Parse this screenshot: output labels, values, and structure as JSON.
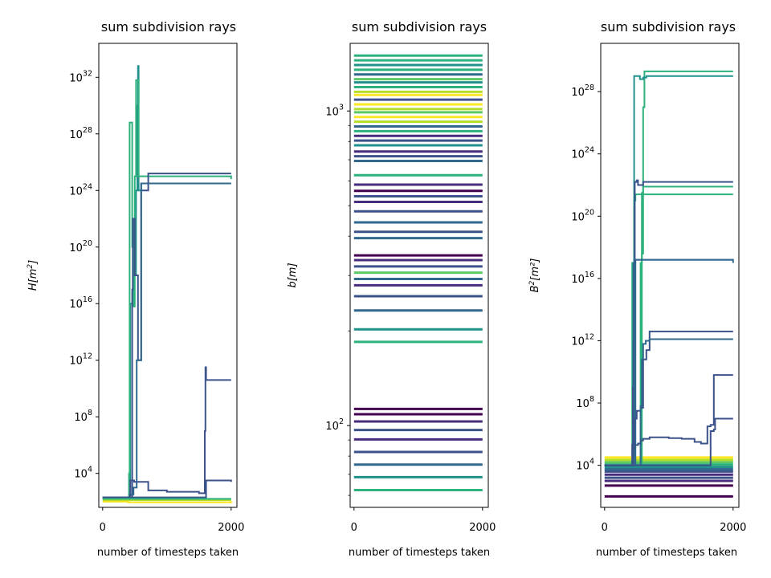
{
  "chart_data": [
    {
      "type": "line",
      "title": "sum subdivision rays",
      "xlabel": "number of timesteps taken",
      "ylabel": "H[m²]",
      "ylabel_base": "H[m",
      "ylabel_sup": "2",
      "ylabel_tail": "]",
      "yscale": "log",
      "xlim": [
        -60,
        2090
      ],
      "ylim_log10": [
        1.6,
        34.4
      ],
      "xticks": [
        {
          "v": 0,
          "label": "0"
        },
        {
          "v": 2000,
          "label": "2000"
        }
      ],
      "yticks": [
        {
          "exp": 4,
          "base": "10",
          "sup": "4"
        },
        {
          "exp": 8,
          "base": "10",
          "sup": "8"
        },
        {
          "exp": 12,
          "base": "10",
          "sup": "12"
        },
        {
          "exp": 16,
          "base": "10",
          "sup": "16"
        },
        {
          "exp": 20,
          "base": "10",
          "sup": "20"
        },
        {
          "exp": 24,
          "base": "10",
          "sup": "24"
        },
        {
          "exp": 28,
          "base": "10",
          "sup": "28"
        },
        {
          "exp": 32,
          "base": "10",
          "sup": "32"
        }
      ],
      "series": [
        {
          "color": "#21918c",
          "x": [
            0,
            420,
            430,
            470,
            480,
            510,
            520,
            540,
            550,
            560,
            600,
            2000
          ],
          "y_log10": [
            2.3,
            2.3,
            16,
            20,
            22,
            18,
            24,
            30,
            32.8,
            24,
            24.5,
            24.5
          ]
        },
        {
          "color": "#2db27d",
          "x": [
            0,
            400,
            410,
            420,
            430,
            460,
            480,
            500,
            520,
            560,
            2000
          ],
          "y_log10": [
            2.3,
            2.3,
            4,
            28.8,
            28.8,
            20,
            15.8,
            25,
            31.8,
            25,
            24.8
          ]
        },
        {
          "color": "#3b528b",
          "x": [
            0,
            400,
            460,
            470,
            500,
            550,
            600,
            700,
            710,
            750,
            2000
          ],
          "y_log10": [
            2.3,
            2.3,
            17,
            22,
            18,
            12,
            24,
            24,
            25.2,
            25.2,
            25.2
          ]
        },
        {
          "color": "#31688e",
          "x": [
            0,
            380,
            420,
            480,
            530,
            560,
            600,
            700,
            720,
            2000
          ],
          "y_log10": [
            2.3,
            2.3,
            2.5,
            3,
            12,
            12,
            24.5,
            24.5,
            24.5,
            24.5
          ]
        },
        {
          "color": "#3b528b",
          "x": [
            0,
            420,
            430,
            490,
            540,
            700,
            710,
            1000,
            1500,
            1580,
            1590,
            1600,
            1610,
            1650,
            2000
          ],
          "y_log10": [
            2.3,
            2.3,
            3.5,
            3.4,
            3.4,
            3.4,
            2.8,
            2.7,
            2.6,
            2.6,
            7,
            11.5,
            10.6,
            10.6,
            10.6
          ]
        },
        {
          "color": "#3b528b",
          "x": [
            0,
            1600,
            1610,
            1800,
            2000
          ],
          "y_log10": [
            2.3,
            2.3,
            3.5,
            3.5,
            3.4
          ]
        },
        {
          "color": "#21918c",
          "x": [
            0,
            2000
          ],
          "y_log10": [
            2.15,
            2.15
          ]
        },
        {
          "color": "#fde725",
          "x": [
            0,
            400,
            2000
          ],
          "y_log10": [
            2.0,
            1.95,
            2.05
          ]
        },
        {
          "color": "#b5de2b",
          "x": [
            0,
            2000
          ],
          "y_log10": [
            2.1,
            2.1
          ]
        },
        {
          "color": "#2db27d",
          "x": [
            0,
            2000
          ],
          "y_log10": [
            2.2,
            2.2
          ]
        }
      ]
    },
    {
      "type": "line",
      "title": "sum subdivision rays",
      "xlabel": "number of timesteps taken",
      "ylabel": "b[m]",
      "ylabel_base": "b[m]",
      "ylabel_sup": "",
      "ylabel_tail": "",
      "yscale": "log",
      "xlim": [
        -60,
        2090
      ],
      "ylim_log10": [
        1.74,
        3.215
      ],
      "xticks": [
        {
          "v": 0,
          "label": "0"
        },
        {
          "v": 2000,
          "label": "2000"
        }
      ],
      "yticks": [
        {
          "exp": 2,
          "base": "10",
          "sup": "2"
        },
        {
          "exp": 3,
          "base": "10",
          "sup": "3"
        }
      ],
      "minor_ticks_log10": [
        1.778,
        1.845,
        1.903,
        1.954,
        2.301,
        2.477,
        2.602,
        2.699,
        2.778,
        2.845,
        2.903,
        2.954
      ],
      "constant_lines": [
        {
          "v": 1.795,
          "color": "#2db27d"
        },
        {
          "v": 1.836,
          "color": "#21918c"
        },
        {
          "v": 1.876,
          "color": "#31688e"
        },
        {
          "v": 1.916,
          "color": "#3b528b"
        },
        {
          "v": 1.956,
          "color": "#472d7b"
        },
        {
          "v": 1.986,
          "color": "#3b528b"
        },
        {
          "v": 2.013,
          "color": "#472d7b"
        },
        {
          "v": 2.036,
          "color": "#440154"
        },
        {
          "v": 2.053,
          "color": "#440154"
        },
        {
          "v": 2.266,
          "color": "#2db27d"
        },
        {
          "v": 2.306,
          "color": "#21918c"
        },
        {
          "v": 2.366,
          "color": "#31688e"
        },
        {
          "v": 2.411,
          "color": "#3b528b"
        },
        {
          "v": 2.446,
          "color": "#472d7b"
        },
        {
          "v": 2.466,
          "color": "#31688e"
        },
        {
          "v": 2.486,
          "color": "#5ec962"
        },
        {
          "v": 2.506,
          "color": "#3b528b"
        },
        {
          "v": 2.526,
          "color": "#472d7b"
        },
        {
          "v": 2.541,
          "color": "#440154"
        },
        {
          "v": 2.596,
          "color": "#31688e"
        },
        {
          "v": 2.616,
          "color": "#3b528b"
        },
        {
          "v": 2.646,
          "color": "#31688e"
        },
        {
          "v": 2.681,
          "color": "#3b528b"
        },
        {
          "v": 2.711,
          "color": "#472d7b"
        },
        {
          "v": 2.729,
          "color": "#3b528b"
        },
        {
          "v": 2.746,
          "color": "#440154"
        },
        {
          "v": 2.766,
          "color": "#472d7b"
        },
        {
          "v": 2.796,
          "color": "#2db27d"
        },
        {
          "v": 2.841,
          "color": "#31688e"
        },
        {
          "v": 2.856,
          "color": "#3b528b"
        },
        {
          "v": 2.871,
          "color": "#472d7b"
        },
        {
          "v": 2.891,
          "color": "#21918c"
        },
        {
          "v": 2.906,
          "color": "#3b528b"
        },
        {
          "v": 2.921,
          "color": "#472d7b"
        },
        {
          "v": 2.936,
          "color": "#2db27d"
        },
        {
          "v": 2.951,
          "color": "#31688e"
        },
        {
          "v": 2.966,
          "color": "#b5de2b"
        },
        {
          "v": 2.981,
          "color": "#fde725"
        },
        {
          "v": 2.996,
          "color": "#5ec962"
        },
        {
          "v": 3.006,
          "color": "#b5de2b"
        },
        {
          "v": 3.021,
          "color": "#fde725"
        },
        {
          "v": 3.036,
          "color": "#3b528b"
        },
        {
          "v": 3.051,
          "color": "#fde725"
        },
        {
          "v": 3.061,
          "color": "#b5de2b"
        },
        {
          "v": 3.076,
          "color": "#2db27d"
        },
        {
          "v": 3.091,
          "color": "#21918c"
        },
        {
          "v": 3.101,
          "color": "#5ec962"
        },
        {
          "v": 3.116,
          "color": "#31688e"
        },
        {
          "v": 3.131,
          "color": "#2db27d"
        },
        {
          "v": 3.146,
          "color": "#21918c"
        },
        {
          "v": 3.161,
          "color": "#2db27d"
        },
        {
          "v": 3.176,
          "color": "#2db27d"
        }
      ]
    },
    {
      "type": "line",
      "title": "sum subdivision rays",
      "xlabel": "number of timesteps taken",
      "ylabel": "B²[m²]",
      "ylabel_base": "B",
      "ylabel_sup": "2",
      "ylabel_tail": "[m²]",
      "yscale": "log",
      "xlim": [
        -60,
        2090
      ],
      "ylim_log10": [
        1.3,
        31.1
      ],
      "xticks": [
        {
          "v": 0,
          "label": "0"
        },
        {
          "v": 2000,
          "label": "2000"
        }
      ],
      "yticks": [
        {
          "exp": 4,
          "base": "10",
          "sup": "4"
        },
        {
          "exp": 8,
          "base": "10",
          "sup": "8"
        },
        {
          "exp": 12,
          "base": "10",
          "sup": "12"
        },
        {
          "exp": 16,
          "base": "10",
          "sup": "16"
        },
        {
          "exp": 20,
          "base": "10",
          "sup": "20"
        },
        {
          "exp": 24,
          "base": "10",
          "sup": "24"
        },
        {
          "exp": 28,
          "base": "10",
          "sup": "28"
        }
      ],
      "constant_lines": [
        {
          "v": 2.0,
          "color": "#440154"
        },
        {
          "v": 2.7,
          "color": "#440154"
        },
        {
          "v": 3.0,
          "color": "#472d7b"
        },
        {
          "v": 3.2,
          "color": "#3b528b"
        },
        {
          "v": 3.4,
          "color": "#472d7b"
        },
        {
          "v": 3.6,
          "color": "#3b528b"
        },
        {
          "v": 3.75,
          "color": "#31688e"
        },
        {
          "v": 3.9,
          "color": "#21918c"
        },
        {
          "v": 4.05,
          "color": "#2db27d"
        },
        {
          "v": 4.2,
          "color": "#5ec962"
        },
        {
          "v": 4.35,
          "color": "#b5de2b"
        },
        {
          "v": 4.5,
          "color": "#fde725"
        }
      ],
      "series": [
        {
          "color": "#2db27d",
          "x": [
            0,
            420,
            430,
            460,
            480,
            2000
          ],
          "y_log10": [
            4.0,
            4.0,
            17,
            21,
            21.4,
            21.4
          ]
        },
        {
          "color": "#2db27d",
          "x": [
            0,
            520,
            560,
            580,
            600,
            2000
          ],
          "y_log10": [
            4.0,
            4.0,
            17,
            21.5,
            21.9,
            21.9
          ]
        },
        {
          "color": "#2db27d",
          "x": [
            0,
            570,
            580,
            600,
            620,
            2000
          ],
          "y_log10": [
            4.0,
            4.0,
            17.6,
            27,
            29.3,
            29.3
          ]
        },
        {
          "color": "#21918c",
          "x": [
            0,
            430,
            440,
            450,
            460,
            500,
            550,
            600,
            650,
            2000
          ],
          "y_log10": [
            4.0,
            4.0,
            12,
            17,
            29.0,
            29.0,
            28.8,
            28.9,
            29.0,
            29.0
          ]
        },
        {
          "color": "#31688e",
          "x": [
            0,
            460,
            480,
            520,
            560,
            600,
            2000
          ],
          "y_log10": [
            4.0,
            4.0,
            17.2,
            17.2,
            17.2,
            17.2,
            17.2
          ]
        },
        {
          "color": "#3b528b",
          "x": [
            0,
            430,
            440,
            450,
            470,
            500,
            520,
            560,
            600,
            2000
          ],
          "y_log10": [
            4.0,
            4.0,
            9,
            17,
            22.2,
            22.3,
            22.0,
            22.0,
            22.2,
            22.2
          ]
        },
        {
          "color": "#31688e",
          "x": [
            0,
            440,
            460,
            500,
            550,
            2000
          ],
          "y_log10": [
            4.0,
            4.0,
            17.2,
            17.2,
            17.2,
            17.0
          ]
        },
        {
          "color": "#3b528b",
          "x": [
            0,
            420,
            440,
            460,
            500,
            560,
            600,
            650,
            700,
            1000,
            1600,
            2000
          ],
          "y_log10": [
            4.0,
            4.0,
            5,
            7.0,
            7.5,
            7.7,
            10.8,
            11.4,
            12.6,
            12.6,
            12.6,
            12.6
          ]
        },
        {
          "color": "#31688e",
          "x": [
            0,
            500,
            560,
            580,
            600,
            640,
            700,
            2000
          ],
          "y_log10": [
            4.0,
            4.0,
            7.8,
            10.8,
            11.8,
            12.0,
            12.1,
            12.1
          ]
        },
        {
          "color": "#3b528b",
          "x": [
            0,
            420,
            430,
            520,
            560,
            600,
            700,
            800,
            1000,
            1100,
            1200,
            1400,
            1500,
            1600,
            1650,
            1700,
            2000
          ],
          "y_log10": [
            4.0,
            4.0,
            5.3,
            5.4,
            5.6,
            5.7,
            5.8,
            5.8,
            5.75,
            5.75,
            5.7,
            5.5,
            5.4,
            6.5,
            6.6,
            9.8,
            9.8
          ]
        },
        {
          "color": "#3b528b",
          "x": [
            0,
            1600,
            1650,
            1700,
            1720,
            2000
          ],
          "y_log10": [
            4.0,
            4.0,
            6.2,
            6.3,
            7.0,
            7.0
          ]
        }
      ]
    }
  ]
}
